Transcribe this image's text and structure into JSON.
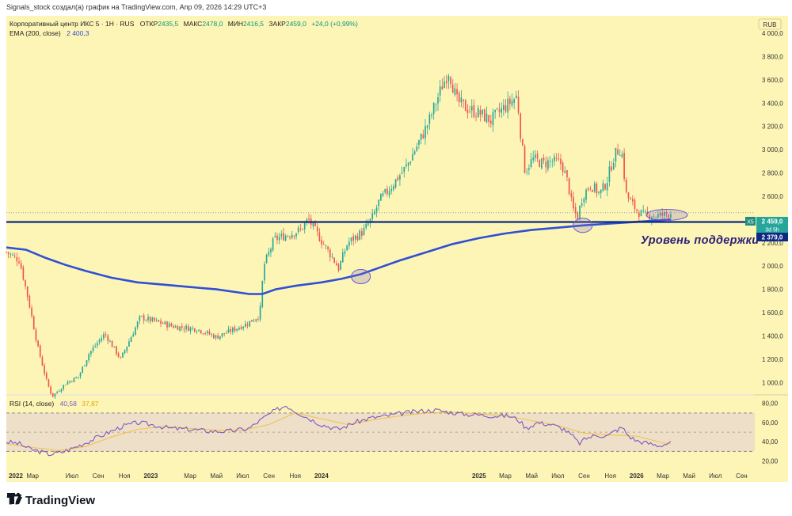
{
  "header": {
    "attribution": "Signals_stock создал(а) график на TradingView.com, Апр 09, 2026 14:29 UTC+3",
    "symbol_line": "Корпоративный центр ИКС 5 · 1Н · RUS",
    "ohlc": [
      {
        "label": "ОТКР",
        "value": "2435,5"
      },
      {
        "label": "МАКС",
        "value": "2478,0"
      },
      {
        "label": "МИН",
        "value": "2416,5"
      },
      {
        "label": "ЗАКР",
        "value": "2459,0"
      }
    ],
    "change": "+24,0 (+0,99%)",
    "ema_label": "EMA (200, close)",
    "ema_value": "2 400,3",
    "currency": "RUB"
  },
  "rsi_header": {
    "label": "RSI (14, close)",
    "value": "40,58",
    "ma_value": "37,87"
  },
  "price_badges": {
    "ticker": "X5",
    "last": "2 459,0",
    "countdown": "3d 5h",
    "support": "2 379,0"
  },
  "annotation": "Уровень поддержки",
  "footer": {
    "logo_text": "TradingView"
  },
  "colors": {
    "background": "#fdf5b5",
    "up": "#26a69a",
    "down": "#ef5350",
    "ema": "#2f4fd6",
    "support": "#0c2a84",
    "rsi": "#7e57c2",
    "rsi_ma": "#f2c14e",
    "rsi_band": "#eee0c8",
    "annotation": "#2b1f7a"
  },
  "chart_data": [
    {
      "type": "candlestick",
      "title": "Корпоративный центр ИКС 5 · 1Н · RUS",
      "y_ticks": [
        1000,
        1200,
        1400,
        1600,
        1800,
        2000,
        2200,
        2600,
        2800,
        3000,
        3200,
        3400,
        3600,
        3800,
        4000
      ],
      "y_tick_labels": [
        "1 000,0",
        "1 200,0",
        "1 400,0",
        "1 600,0",
        "1 800,0",
        "2 000,0",
        "2 200,0",
        "2 600,0",
        "2 800,0",
        "3 000,0",
        "3 200,0",
        "3 400,0",
        "3 600,0",
        "3 800,0",
        "4 000,0"
      ],
      "x_tick_labels": [
        "2022",
        "Мар",
        "Июл",
        "Сен",
        "Ноя",
        "2023",
        "Мар",
        "Май",
        "Июл",
        "Сен",
        "Ноя",
        "2024",
        "2025",
        "Мар",
        "Май",
        "Июл",
        "Сен",
        "Ноя",
        "2026",
        "Мар",
        "Май",
        "Июл",
        "Сен"
      ],
      "x_tick_positions": [
        0,
        2,
        5,
        7,
        9,
        11,
        14,
        16,
        18,
        20,
        22,
        24,
        36,
        38,
        40,
        42,
        44,
        46,
        48,
        50,
        52,
        54,
        56
      ],
      "x_range_months": [
        0,
        57
      ],
      "ylim": [
        900,
        4150
      ],
      "close_anchors": [
        [
          0.0,
          2120
        ],
        [
          1.0,
          2050
        ],
        [
          1.7,
          1700
        ],
        [
          2.4,
          1300
        ],
        [
          3.1,
          1000
        ],
        [
          3.5,
          880
        ],
        [
          4.6,
          1000
        ],
        [
          5.5,
          1050
        ],
        [
          6.3,
          1250
        ],
        [
          7.5,
          1420
        ],
        [
          8.7,
          1200
        ],
        [
          10.2,
          1560
        ],
        [
          11.5,
          1520
        ],
        [
          12.8,
          1480
        ],
        [
          14.5,
          1460
        ],
        [
          16.0,
          1390
        ],
        [
          17.6,
          1470
        ],
        [
          18.4,
          1510
        ],
        [
          19.3,
          1580
        ],
        [
          19.6,
          2000
        ],
        [
          20.4,
          2230
        ],
        [
          21.2,
          2260
        ],
        [
          22.4,
          2310
        ],
        [
          23.0,
          2400
        ],
        [
          24.1,
          2200
        ],
        [
          24.8,
          2080
        ],
        [
          25.3,
          1980
        ],
        [
          26.0,
          2200
        ],
        [
          27.2,
          2300
        ],
        [
          27.9,
          2420
        ],
        [
          28.4,
          2560
        ],
        [
          29.0,
          2640
        ],
        [
          30.5,
          2860
        ],
        [
          31.8,
          3150
        ],
        [
          32.2,
          3250
        ],
        [
          33.2,
          3550
        ],
        [
          33.7,
          3680
        ],
        [
          34.3,
          3420
        ],
        [
          35.0,
          3360
        ],
        [
          36.2,
          3300
        ],
        [
          36.9,
          3250
        ],
        [
          37.6,
          3330
        ],
        [
          38.5,
          3420
        ],
        [
          38.9,
          3460
        ],
        [
          39.2,
          3100
        ],
        [
          39.5,
          2820
        ],
        [
          40.1,
          2920
        ],
        [
          40.9,
          2880
        ],
        [
          41.5,
          2900
        ],
        [
          42.3,
          2880
        ],
        [
          42.8,
          2700
        ],
        [
          43.1,
          2500
        ],
        [
          43.5,
          2420
        ],
        [
          43.9,
          2610
        ],
        [
          44.5,
          2700
        ],
        [
          45.2,
          2620
        ],
        [
          45.7,
          2720
        ],
        [
          46.3,
          2950
        ],
        [
          46.7,
          3010
        ],
        [
          46.9,
          2950
        ],
        [
          47.2,
          2620
        ],
        [
          47.6,
          2540
        ],
        [
          48.1,
          2470
        ],
        [
          48.6,
          2430
        ],
        [
          49.1,
          2440
        ],
        [
          49.6,
          2430
        ],
        [
          50.1,
          2440
        ],
        [
          50.6,
          2459
        ]
      ],
      "ema_200": [
        [
          0.0,
          2160
        ],
        [
          1.5,
          2140
        ],
        [
          3.0,
          2070
        ],
        [
          4.5,
          2010
        ],
        [
          6.0,
          1960
        ],
        [
          8.0,
          1900
        ],
        [
          10.0,
          1860
        ],
        [
          12.0,
          1840
        ],
        [
          14.0,
          1820
        ],
        [
          16.0,
          1800
        ],
        [
          18.5,
          1760
        ],
        [
          19.5,
          1760
        ],
        [
          20.5,
          1800
        ],
        [
          22.0,
          1830
        ],
        [
          24.0,
          1860
        ],
        [
          25.5,
          1890
        ],
        [
          27.0,
          1930
        ],
        [
          28.5,
          1990
        ],
        [
          30.0,
          2050
        ],
        [
          32.0,
          2120
        ],
        [
          34.0,
          2190
        ],
        [
          36.0,
          2240
        ],
        [
          38.0,
          2280
        ],
        [
          40.0,
          2310
        ],
        [
          42.0,
          2330
        ],
        [
          44.0,
          2350
        ],
        [
          46.0,
          2365
        ],
        [
          48.0,
          2380
        ],
        [
          50.0,
          2395
        ],
        [
          50.6,
          2400
        ]
      ],
      "support_level": 2379,
      "last_price": 2459,
      "highlight_ellipses_at": [
        [
          27.0,
          1910
        ],
        [
          43.9,
          2350
        ],
        [
          50.3,
          2440
        ]
      ]
    },
    {
      "type": "line",
      "title": "RSI (14, close)",
      "y_ticks": [
        20,
        40,
        60,
        80
      ],
      "y_tick_labels": [
        "20,00",
        "40,00",
        "60,00",
        "80,00"
      ],
      "band": [
        30,
        70
      ],
      "midline": 50,
      "ylim": [
        13,
        88
      ],
      "series": [
        {
          "name": "RSI",
          "points": [
            [
              0.0,
              40
            ],
            [
              1.0,
              38
            ],
            [
              1.7,
              33
            ],
            [
              2.5,
              30
            ],
            [
              3.3,
              27
            ],
            [
              4.2,
              29
            ],
            [
              5.0,
              33
            ],
            [
              6.2,
              40
            ],
            [
              7.5,
              48
            ],
            [
              8.8,
              56
            ],
            [
              10.0,
              60
            ],
            [
              11.0,
              58
            ],
            [
              12.5,
              54
            ],
            [
              14.0,
              53
            ],
            [
              15.5,
              51
            ],
            [
              17.0,
              51
            ],
            [
              18.5,
              54
            ],
            [
              19.5,
              64
            ],
            [
              20.4,
              72
            ],
            [
              21.3,
              78
            ],
            [
              22.0,
              72
            ],
            [
              22.8,
              66
            ],
            [
              24.0,
              58
            ],
            [
              25.3,
              53
            ],
            [
              26.5,
              60
            ],
            [
              27.8,
              65
            ],
            [
              29.0,
              67
            ],
            [
              30.3,
              70
            ],
            [
              31.6,
              72
            ],
            [
              32.7,
              73
            ],
            [
              33.7,
              71
            ],
            [
              34.8,
              69
            ],
            [
              36.0,
              68
            ],
            [
              37.2,
              67
            ],
            [
              38.3,
              67
            ],
            [
              39.0,
              63
            ],
            [
              39.6,
              54
            ],
            [
              40.4,
              60
            ],
            [
              41.5,
              58
            ],
            [
              42.5,
              53
            ],
            [
              43.2,
              45
            ],
            [
              43.6,
              38
            ],
            [
              44.2,
              44
            ],
            [
              45.0,
              47
            ],
            [
              45.8,
              46
            ],
            [
              46.4,
              52
            ],
            [
              46.9,
              55
            ],
            [
              47.4,
              46
            ],
            [
              48.0,
              41
            ],
            [
              49.0,
              38
            ],
            [
              49.7,
              36
            ],
            [
              50.3,
              38
            ],
            [
              50.6,
              40.58
            ]
          ]
        },
        {
          "name": "RSI MA",
          "points": [
            [
              0.0,
              38
            ],
            [
              2.0,
              34
            ],
            [
              4.0,
              31
            ],
            [
              6.0,
              35
            ],
            [
              8.0,
              45
            ],
            [
              10.0,
              53
            ],
            [
              12.0,
              56
            ],
            [
              14.0,
              54
            ],
            [
              16.0,
              52
            ],
            [
              18.0,
              52
            ],
            [
              20.0,
              58
            ],
            [
              22.0,
              70
            ],
            [
              24.0,
              64
            ],
            [
              26.0,
              58
            ],
            [
              28.0,
              63
            ],
            [
              30.0,
              67
            ],
            [
              32.0,
              70
            ],
            [
              34.0,
              71
            ],
            [
              36.0,
              69
            ],
            [
              38.0,
              67
            ],
            [
              40.0,
              62
            ],
            [
              42.0,
              57
            ],
            [
              44.0,
              49
            ],
            [
              46.0,
              47
            ],
            [
              48.0,
              46
            ],
            [
              50.0,
              39
            ],
            [
              50.6,
              37.87
            ]
          ]
        }
      ]
    }
  ]
}
